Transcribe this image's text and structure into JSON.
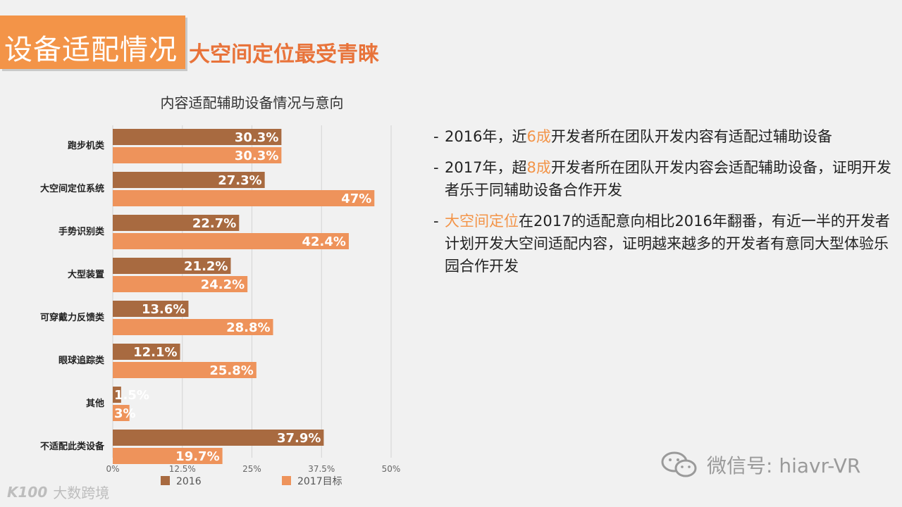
{
  "header": {
    "title": "设备适配情况",
    "subtitle": "大空间定位最受青睐"
  },
  "chart_data": {
    "type": "bar",
    "orientation": "horizontal",
    "title": "内容适配辅助设备情况与意向",
    "categories": [
      "跑步机类",
      "大空间定位系统",
      "手势识别类",
      "大型装置",
      "可穿戴力反馈类",
      "眼球追踪类",
      "其他",
      "不适配此类设备"
    ],
    "series": [
      {
        "name": "2016",
        "values": [
          30.3,
          27.3,
          22.7,
          21.2,
          13.6,
          12.1,
          1.5,
          37.9
        ],
        "labels": [
          "30.3%",
          "27.3%",
          "22.7%",
          "21.2%",
          "13.6%",
          "12.1%",
          "1.5%",
          "37.9%"
        ],
        "color": "#a86a40"
      },
      {
        "name": "2017目标",
        "values": [
          30.3,
          47,
          42.4,
          24.2,
          28.8,
          25.8,
          3,
          19.7
        ],
        "labels": [
          "30.3%",
          "47%",
          "42.4%",
          "24.2%",
          "28.8%",
          "25.8%",
          "3%",
          "19.7%"
        ],
        "color": "#ee935b"
      }
    ],
    "xlim": [
      0,
      50
    ],
    "xticks": [
      "0%",
      "12.5%",
      "25%",
      "37.5%",
      "50%"
    ],
    "grid": true,
    "legend": "bottom"
  },
  "bullets": [
    {
      "parts": [
        {
          "text": "2016年，近"
        },
        {
          "text": "6成",
          "hl": true
        },
        {
          "text": "开发者所在团队开发内容有适配过辅助设备"
        }
      ]
    },
    {
      "parts": [
        {
          "text": "2017年，超"
        },
        {
          "text": "8成",
          "hl": true
        },
        {
          "text": "开发者所在团队开发内容会适配辅助设备，证明开发者乐于同辅助设备合作开发"
        }
      ]
    },
    {
      "parts": [
        {
          "text": "大空间定位",
          "hl": true
        },
        {
          "text": "在2017的适配意向相比2016年翻番，有近一半的开发者计划开发大空间适配内容，证明越来越多的开发者有意同大型体验乐园合作开发"
        }
      ]
    }
  ],
  "bullet_dash": "-",
  "footer": {
    "wechat_text": "微信号: hiavr-VR",
    "watermark_logo": "K100",
    "watermark_text": "大数跨境"
  }
}
